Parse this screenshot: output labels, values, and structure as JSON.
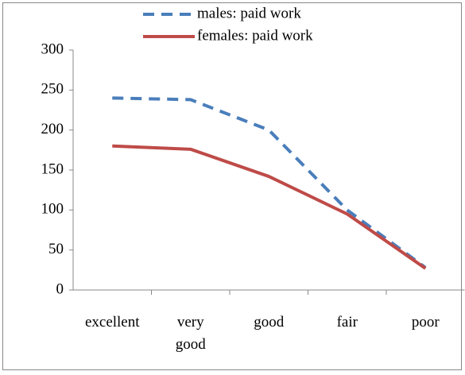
{
  "chart_data": {
    "type": "line",
    "categories": [
      "excellent",
      "very good",
      "good",
      "fair",
      "poor"
    ],
    "series": [
      {
        "name": "males: paid work",
        "color": "#4a7ebb",
        "dashed": true,
        "values": [
          240,
          238,
          200,
          100,
          28
        ]
      },
      {
        "name": "females: paid work",
        "color": "#be4b48",
        "dashed": false,
        "values": [
          180,
          176,
          142,
          95,
          27
        ]
      }
    ],
    "ylim": [
      0,
      300
    ],
    "yticks": [
      0,
      50,
      100,
      150,
      200,
      250,
      300
    ],
    "grid": false,
    "legend": "top"
  }
}
